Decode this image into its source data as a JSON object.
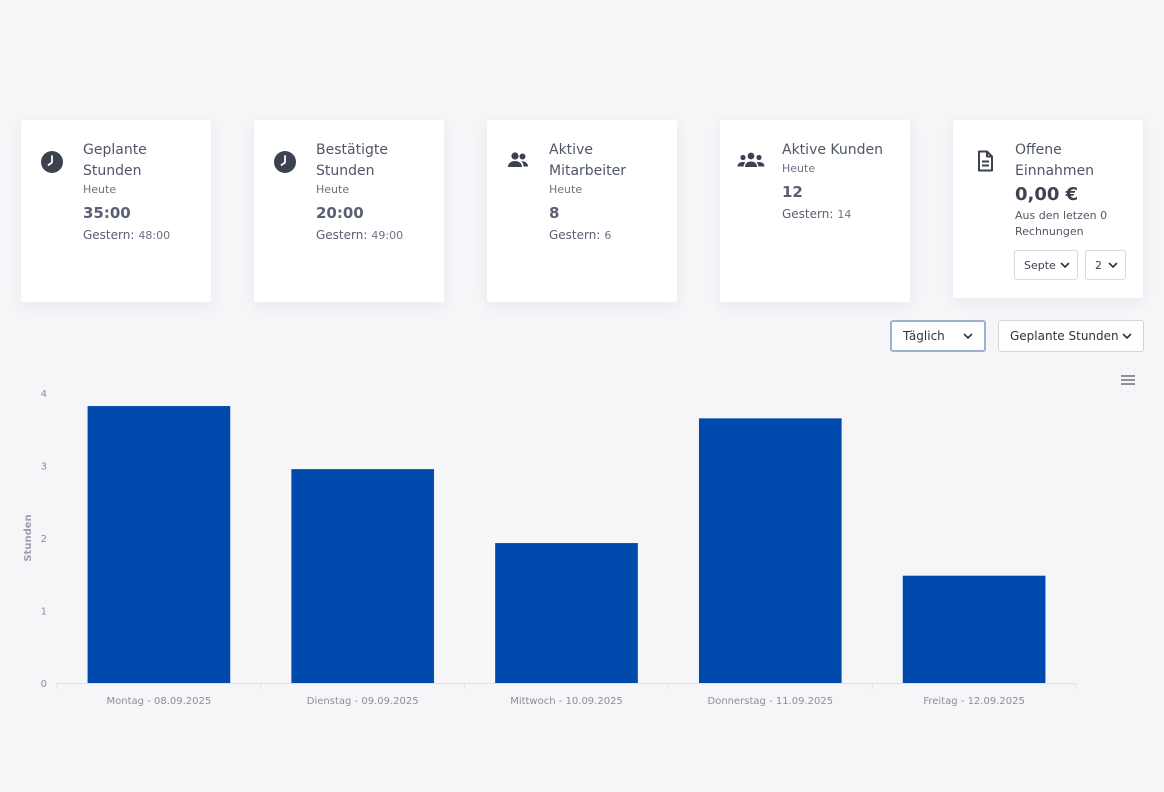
{
  "cards": [
    {
      "title": "Geplante Stunden",
      "subtitle": "Heute",
      "value": "35:00",
      "yesterday_label": "Gestern:",
      "yesterday_value": "48:00",
      "icon": "clock-icon"
    },
    {
      "title": "Bestätigte Stunden",
      "subtitle": "Heute",
      "value": "20:00",
      "yesterday_label": "Gestern:",
      "yesterday_value": "49:00",
      "icon": "clock-icon"
    },
    {
      "title": "Aktive Mitarbeiter",
      "subtitle": "Heute",
      "value": "8",
      "yesterday_label": "Gestern:",
      "yesterday_value": "6",
      "icon": "people-icon"
    },
    {
      "title": "Aktive Kunden",
      "subtitle": "Heute",
      "value": "12",
      "yesterday_label": "Gestern:",
      "yesterday_value": "14",
      "icon": "group-icon"
    },
    {
      "title": "Offene Einnahmen",
      "value": "0,00 €",
      "note": "Aus den letzen 0 Rechnungen",
      "icon": "document-icon",
      "month_select": "Septe",
      "year_select": "2"
    }
  ],
  "controls": {
    "period_select": "Täglich",
    "metric_select": "Geplante Stunden"
  },
  "colors": {
    "bar": "#004aad",
    "accent_border": "#9eb3d4"
  },
  "chart_data": {
    "type": "bar",
    "categories": [
      "Montag - 08.09.2025",
      "Dienstag - 09.09.2025",
      "Mittwoch - 10.09.2025",
      "Donnerstag - 11.09.2025",
      "Freitag - 12.09.2025"
    ],
    "values": [
      3.82,
      2.95,
      1.93,
      3.65,
      1.48
    ],
    "ylabel": "Stunden",
    "ylim": [
      0,
      4
    ],
    "yticks": [
      0,
      1,
      2,
      3,
      4
    ],
    "grid": false
  }
}
